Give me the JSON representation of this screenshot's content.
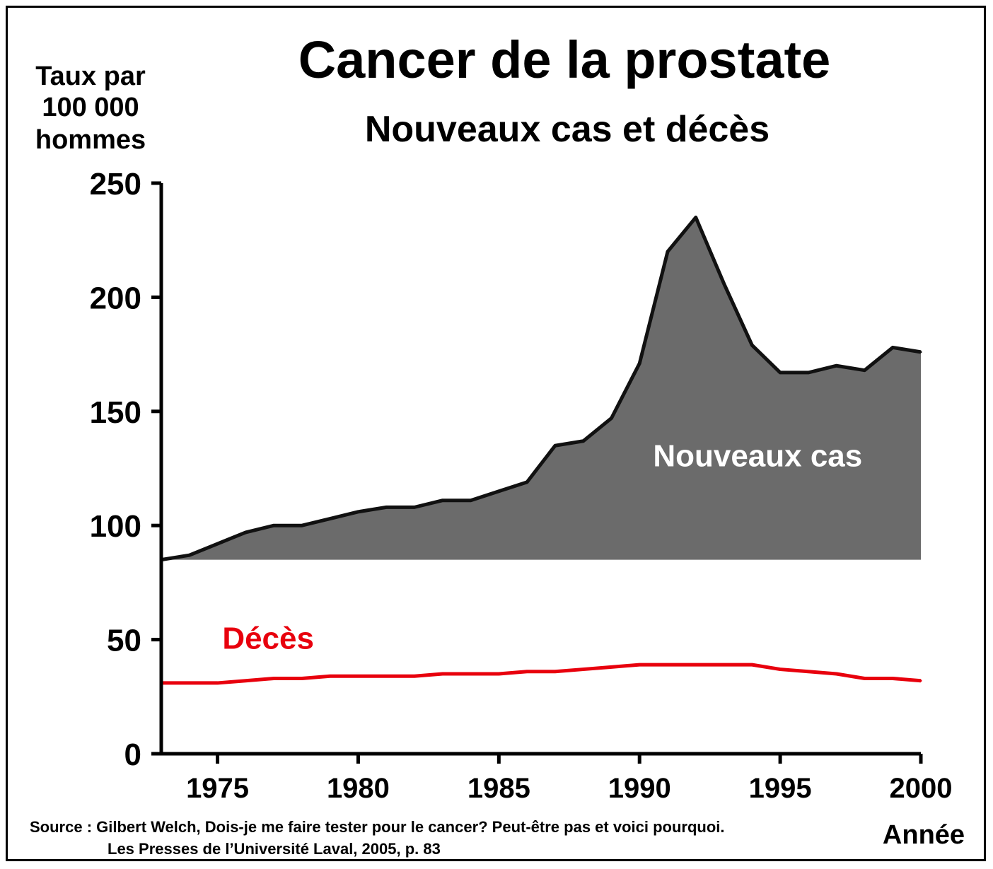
{
  "chart_data": {
    "type": "area",
    "title": "Cancer de la prostate",
    "subtitle": "Nouveaux cas et décès",
    "ylabel_lines": [
      "Taux par",
      "100 000",
      "hommes"
    ],
    "xlabel": "Année",
    "xlim": [
      1973,
      2000
    ],
    "ylim": [
      0,
      250
    ],
    "yticks": [
      0,
      50,
      100,
      150,
      200,
      250
    ],
    "xticks": [
      1975,
      1980,
      1985,
      1990,
      1995,
      2000
    ],
    "grid": false,
    "series": [
      {
        "name": "Nouveaux cas",
        "color": "#6b6b6b",
        "x": [
          1973,
          1974,
          1975,
          1976,
          1977,
          1978,
          1979,
          1980,
          1981,
          1982,
          1983,
          1984,
          1985,
          1986,
          1987,
          1988,
          1989,
          1990,
          1991,
          1992,
          1993,
          1994,
          1995,
          1996,
          1997,
          1998,
          1999,
          2000
        ],
        "y": [
          85,
          87,
          92,
          97,
          100,
          100,
          103,
          106,
          108,
          108,
          111,
          111,
          115,
          119,
          135,
          137,
          147,
          171,
          220,
          235,
          206,
          179,
          167,
          167,
          170,
          168,
          178,
          176
        ]
      },
      {
        "name": "Décès",
        "color": "#e8000d",
        "x": [
          1973,
          1974,
          1975,
          1976,
          1977,
          1978,
          1979,
          1980,
          1981,
          1982,
          1983,
          1984,
          1985,
          1986,
          1987,
          1988,
          1989,
          1990,
          1991,
          1992,
          1993,
          1994,
          1995,
          1996,
          1997,
          1998,
          1999,
          2000
        ],
        "y": [
          31,
          31,
          31,
          32,
          33,
          33,
          34,
          34,
          34,
          34,
          35,
          35,
          35,
          36,
          36,
          37,
          38,
          39,
          39,
          39,
          39,
          39,
          37,
          36,
          35,
          33,
          33,
          32
        ]
      }
    ],
    "area_baseline": 85,
    "annotations": [
      {
        "text": "Nouveaux cas",
        "x": 1994.2,
        "y": 126
      },
      {
        "text": "Décès",
        "x": 1976.8,
        "y": 46
      }
    ]
  },
  "source": {
    "line1": "Source : Gilbert Welch, Dois-je me faire tester pour le cancer?  Peut-être pas et voici pourquoi.",
    "line2": "Les Presses de l’Université Laval, 2005, p. 83"
  }
}
